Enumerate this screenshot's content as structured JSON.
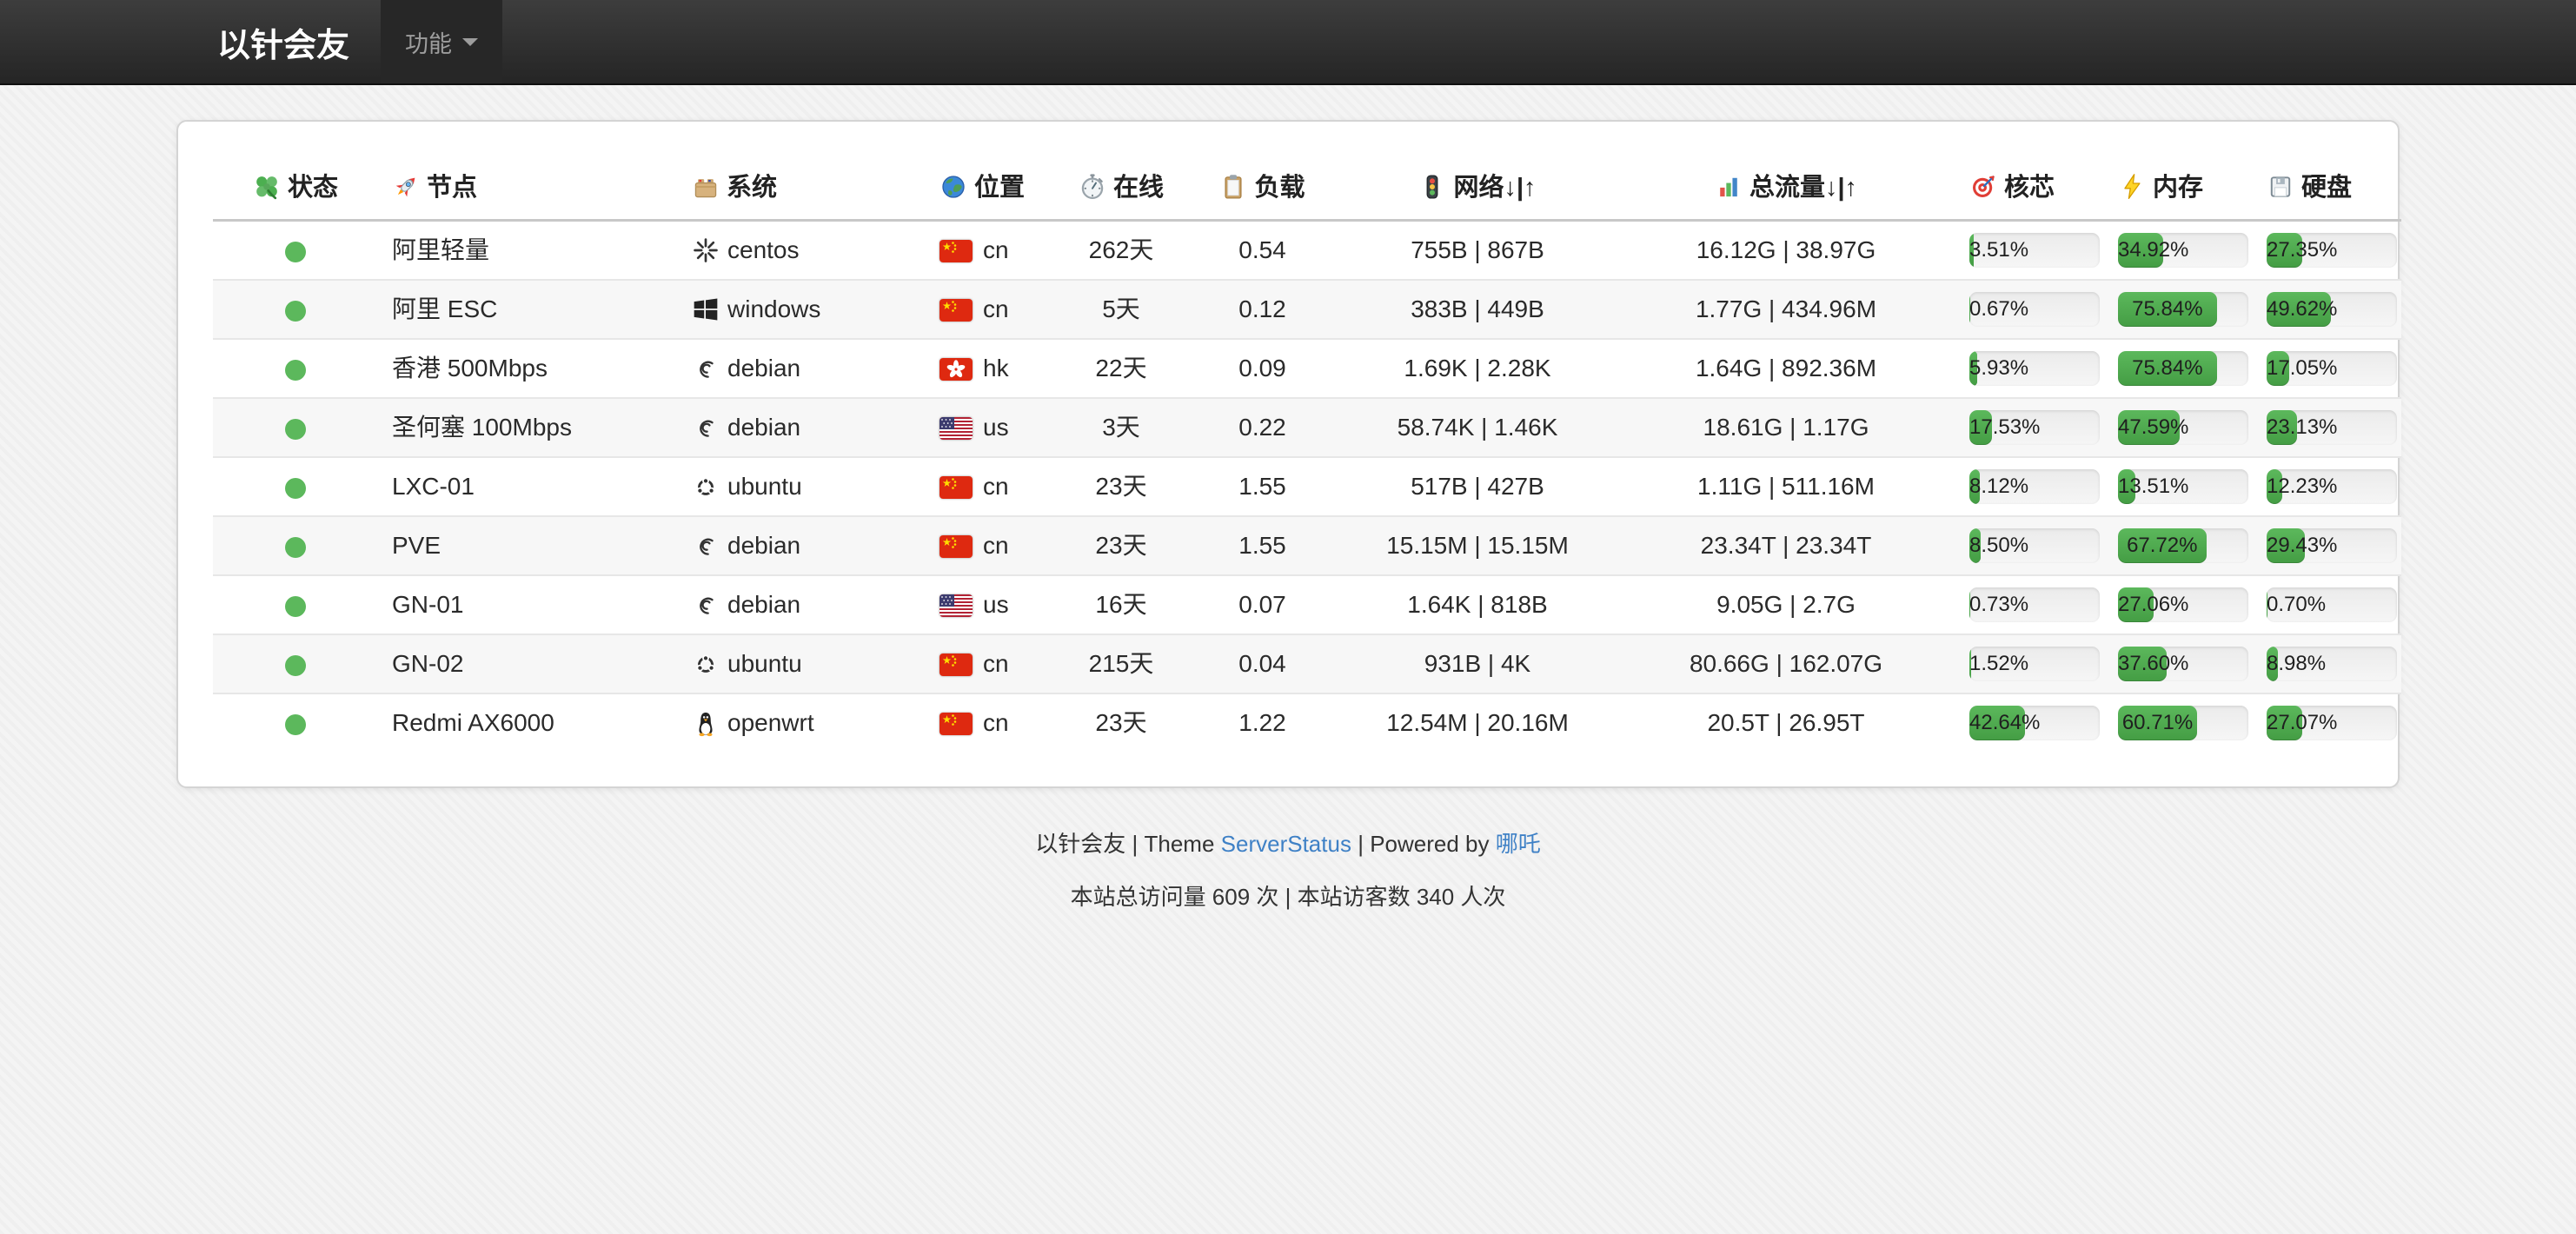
{
  "navbar": {
    "brand": "以针会友",
    "menu_label": "功能"
  },
  "table": {
    "headers": [
      {
        "key": "status",
        "icon": "clover",
        "label": "状态",
        "align": "c"
      },
      {
        "key": "node",
        "icon": "rocket",
        "label": "节点",
        "align": "l"
      },
      {
        "key": "system",
        "icon": "card-box",
        "label": "系统",
        "align": "l"
      },
      {
        "key": "location",
        "icon": "globe",
        "label": "位置",
        "align": "l"
      },
      {
        "key": "uptime",
        "icon": "stopwatch",
        "label": "在线",
        "align": "c"
      },
      {
        "key": "load",
        "icon": "clipboard",
        "label": "负载",
        "align": "c"
      },
      {
        "key": "network",
        "icon": "traffic-light",
        "label": "网络↓|↑",
        "align": "c"
      },
      {
        "key": "traffic",
        "icon": "bar-chart",
        "label": "总流量↓|↑",
        "align": "c"
      },
      {
        "key": "cpu",
        "icon": "target",
        "label": "核芯",
        "align": "l"
      },
      {
        "key": "memory",
        "icon": "lightning",
        "label": "内存",
        "align": "l"
      },
      {
        "key": "disk",
        "icon": "floppy",
        "label": "硬盘",
        "align": "l"
      }
    ],
    "rows": [
      {
        "status": "online",
        "node": "阿里轻量",
        "os": "centos",
        "flag": "cn",
        "uptime": "262天",
        "load": "0.54",
        "network": "755B | 867B",
        "traffic": "16.12G | 38.97G",
        "cpu": 3.51,
        "cpu_label": "3.51%",
        "mem": 34.92,
        "mem_label": "34.92%",
        "disk": 27.35,
        "disk_label": "27.35%"
      },
      {
        "status": "online",
        "node": "阿里 ESC",
        "os": "windows",
        "flag": "cn",
        "uptime": "5天",
        "load": "0.12",
        "network": "383B | 449B",
        "traffic": "1.77G | 434.96M",
        "cpu": 0.67,
        "cpu_label": "0.67%",
        "mem": 75.84,
        "mem_label": "75.84%",
        "disk": 49.62,
        "disk_label": "49.62%"
      },
      {
        "status": "online",
        "node": "香港 500Mbps",
        "os": "debian",
        "flag": "hk",
        "uptime": "22天",
        "load": "0.09",
        "network": "1.69K | 2.28K",
        "traffic": "1.64G | 892.36M",
        "cpu": 5.93,
        "cpu_label": "5.93%",
        "mem": 75.84,
        "mem_label": "75.84%",
        "disk": 17.05,
        "disk_label": "17.05%"
      },
      {
        "status": "online",
        "node": "圣何塞 100Mbps",
        "os": "debian",
        "flag": "us",
        "uptime": "3天",
        "load": "0.22",
        "network": "58.74K | 1.46K",
        "traffic": "18.61G | 1.17G",
        "cpu": 17.53,
        "cpu_label": "17.53%",
        "mem": 47.59,
        "mem_label": "47.59%",
        "disk": 23.13,
        "disk_label": "23.13%"
      },
      {
        "status": "online",
        "node": "LXC-01",
        "os": "ubuntu",
        "flag": "cn",
        "uptime": "23天",
        "load": "1.55",
        "network": "517B | 427B",
        "traffic": "1.11G | 511.16M",
        "cpu": 8.12,
        "cpu_label": "8.12%",
        "mem": 13.51,
        "mem_label": "13.51%",
        "disk": 12.23,
        "disk_label": "12.23%"
      },
      {
        "status": "online",
        "node": "PVE",
        "os": "debian",
        "flag": "cn",
        "uptime": "23天",
        "load": "1.55",
        "network": "15.15M | 15.15M",
        "traffic": "23.34T | 23.34T",
        "cpu": 8.5,
        "cpu_label": "8.50%",
        "mem": 67.72,
        "mem_label": "67.72%",
        "disk": 29.43,
        "disk_label": "29.43%"
      },
      {
        "status": "online",
        "node": "GN-01",
        "os": "debian",
        "flag": "us",
        "uptime": "16天",
        "load": "0.07",
        "network": "1.64K | 818B",
        "traffic": "9.05G | 2.7G",
        "cpu": 0.73,
        "cpu_label": "0.73%",
        "mem": 27.06,
        "mem_label": "27.06%",
        "disk": 0.7,
        "disk_label": "0.70%"
      },
      {
        "status": "online",
        "node": "GN-02",
        "os": "ubuntu",
        "flag": "cn",
        "uptime": "215天",
        "load": "0.04",
        "network": "931B | 4K",
        "traffic": "80.66G | 162.07G",
        "cpu": 1.52,
        "cpu_label": "1.52%",
        "mem": 37.6,
        "mem_label": "37.60%",
        "disk": 8.98,
        "disk_label": "8.98%"
      },
      {
        "status": "online",
        "node": "Redmi AX6000",
        "os": "openwrt",
        "flag": "cn",
        "uptime": "23天",
        "load": "1.22",
        "network": "12.54M | 20.16M",
        "traffic": "20.5T | 26.95T",
        "cpu": 42.64,
        "cpu_label": "42.64%",
        "mem": 60.71,
        "mem_label": "60.71%",
        "disk": 27.07,
        "disk_label": "27.07%"
      }
    ]
  },
  "footer": {
    "site": "以针会友",
    "sep": "|",
    "theme_prefix": "Theme",
    "theme_link": "ServerStatus",
    "powered_prefix": "Powered by",
    "powered_link": "哪吒",
    "stats": "本站总访问量 609 次 | 本站访客数 340 人次"
  },
  "colors": {
    "status_green": "#5cb85c",
    "bar_green_top": "#5cb85c",
    "bar_green_bottom": "#449d44",
    "link_blue": "#3f81c6",
    "navbar_dark": "#2e2e2e"
  }
}
